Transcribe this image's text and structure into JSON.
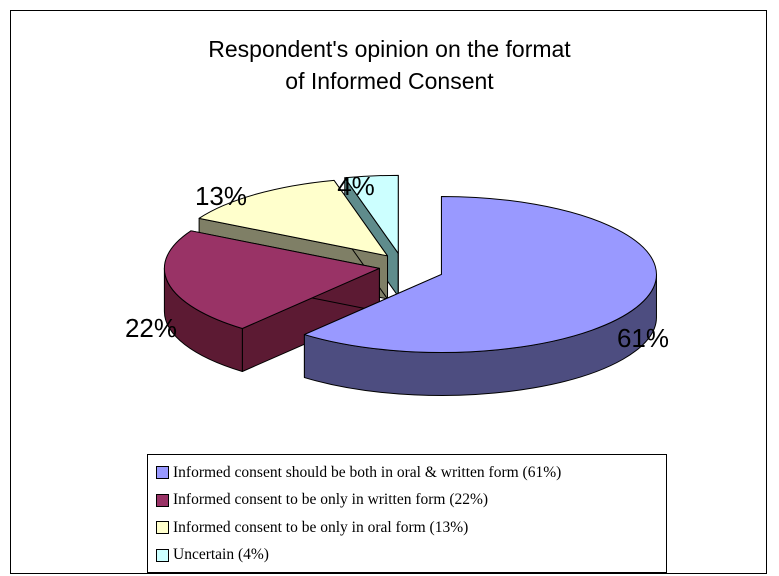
{
  "chart_data": {
    "type": "pie",
    "title_lines": [
      "Respondent's opinion on the format",
      "of Informed Consent"
    ],
    "slices": [
      {
        "label": "Informed consent should be both in oral & written form (61%)",
        "value": 61,
        "display": "61%",
        "color": "#9999ff",
        "side_color": "#4d4d80"
      },
      {
        "label": "Informed consent to be only in written form (22%)",
        "value": 22,
        "display": "22%",
        "color": "#993366",
        "side_color": "#5c1a33"
      },
      {
        "label": "Informed consent to be only in oral form (13%)",
        "value": 13,
        "display": "13%",
        "color": "#ffffcc",
        "side_color": "#7f7f66"
      },
      {
        "label": "Uncertain (4%)",
        "value": 4,
        "display": "4%",
        "color": "#ccffff",
        "side_color": "#5f8c8c"
      }
    ],
    "legend_position": "bottom",
    "exploded": true,
    "three_d": true
  }
}
